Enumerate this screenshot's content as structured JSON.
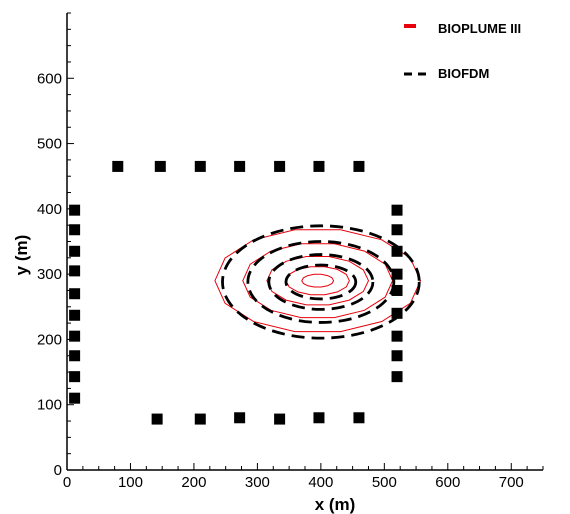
{
  "chart_data": {
    "type": "scatter",
    "title": "",
    "xlabel": "x (m)",
    "ylabel": "y (m)",
    "xlim": [
      0,
      750
    ],
    "ylim": [
      0,
      700
    ],
    "x_ticks": [
      0,
      100,
      200,
      300,
      400,
      500,
      600,
      700
    ],
    "y_ticks": [
      0,
      100,
      200,
      300,
      400,
      500,
      600
    ],
    "x_minor_step": 25,
    "y_minor_step": 25,
    "grid": false,
    "legend_position": "top-right",
    "legend": [
      {
        "label": "BIOPLUME III",
        "style": "solid",
        "color": "#e8000b"
      },
      {
        "label": "BIOFDM",
        "style": "dashed",
        "color": "#000000"
      }
    ],
    "series": [
      {
        "name": "BIOPLUME III",
        "kind": "contours",
        "color": "#e8000b",
        "center": [
          395,
          290
        ],
        "semi_axes": [
          [
            162,
            80
          ],
          [
            118,
            58
          ],
          [
            80,
            38
          ],
          [
            50,
            22
          ],
          [
            25,
            10
          ]
        ]
      },
      {
        "name": "BIOFDM",
        "kind": "contours",
        "color": "#000000",
        "center": [
          400,
          288
        ],
        "semi_axes": [
          [
            155,
            86
          ],
          [
            115,
            62
          ],
          [
            82,
            42
          ],
          [
            55,
            26
          ]
        ]
      },
      {
        "name": "wells",
        "kind": "markers",
        "color": "#000000",
        "x": [
          12,
          12,
          12,
          12,
          12,
          12,
          12,
          12,
          12,
          12,
          80,
          147,
          210,
          272,
          335,
          397,
          460,
          142,
          210,
          272,
          335,
          397,
          460,
          520,
          520,
          520,
          520,
          520,
          520,
          520,
          520,
          520
        ],
        "y": [
          398,
          368,
          335,
          305,
          270,
          237,
          205,
          175,
          143,
          110,
          465,
          465,
          465,
          465,
          465,
          465,
          465,
          78,
          78,
          80,
          78,
          80,
          80,
          398,
          368,
          335,
          300,
          275,
          240,
          205,
          175,
          143
        ]
      }
    ]
  }
}
